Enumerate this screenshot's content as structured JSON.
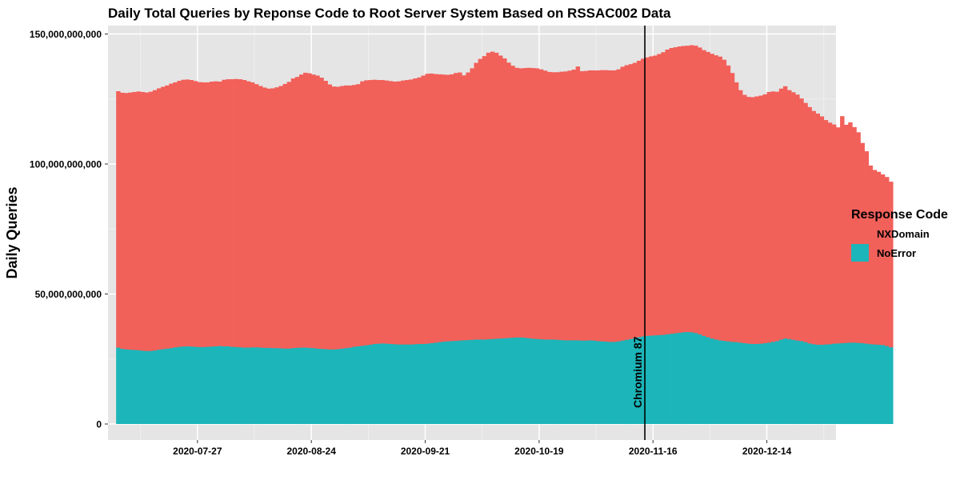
{
  "chart_data": {
    "type": "bar",
    "stacked": true,
    "title": "Daily Total Queries by Reponse Code to Root Server System Based on RSSAC002 Data",
    "xlabel": "",
    "ylabel": "Daily Queries",
    "ylim": [
      0,
      152000000000
    ],
    "yticks": [
      0,
      50000000000,
      100000000000,
      150000000000
    ],
    "ytick_labels": [
      "0",
      "50,000,000,000",
      "100,000,000,000",
      "150,000,000,000"
    ],
    "xtick_labels": [
      "2020-07-27",
      "2020-08-24",
      "2020-09-21",
      "2020-10-19",
      "2020-11-16",
      "2020-12-14"
    ],
    "xtick_dates": [
      "2020-07-27",
      "2020-08-24",
      "2020-09-21",
      "2020-10-19",
      "2020-11-16",
      "2020-12-14"
    ],
    "xlim": [
      "2020-07-05",
      "2020-12-31"
    ],
    "grid": true,
    "legend": {
      "title": "Response Code",
      "position": "right",
      "entries": [
        {
          "name": "NXDomain",
          "color": "#F2605A"
        },
        {
          "name": "NoError",
          "color": "#1CB5B9"
        }
      ]
    },
    "annotation": {
      "label": "Chromium 87",
      "date": "2020-11-17"
    },
    "series_layout": {
      "start_date": "2020-07-07",
      "end_date": "2020-12-31"
    },
    "series": [
      {
        "name": "NoError",
        "color": "#1CB5B9",
        "values": [
          29.5,
          29.0,
          28.8,
          28.7,
          28.6,
          28.5,
          28.3,
          28.2,
          28.2,
          28.4,
          28.7,
          28.9,
          29.1,
          29.3,
          29.6,
          29.8,
          29.9,
          30.0,
          29.9,
          29.8,
          29.7,
          29.7,
          29.8,
          29.9,
          30.0,
          30.1,
          30.0,
          30.0,
          29.8,
          29.7,
          29.6,
          29.5,
          29.5,
          29.6,
          29.6,
          29.5,
          29.4,
          29.4,
          29.3,
          29.3,
          29.2,
          29.1,
          29.1,
          29.3,
          29.4,
          29.5,
          29.5,
          29.4,
          29.3,
          29.1,
          29.0,
          28.9,
          28.8,
          28.8,
          28.9,
          29.1,
          29.3,
          29.5,
          29.8,
          30.0,
          30.2,
          30.4,
          30.6,
          30.9,
          31.0,
          31.1,
          31.0,
          30.9,
          30.8,
          30.7,
          30.7,
          30.7,
          30.7,
          30.8,
          30.9,
          30.9,
          31.0,
          31.2,
          31.4,
          31.6,
          31.8,
          31.9,
          32.0,
          32.1,
          32.2,
          32.3,
          32.4,
          32.5,
          32.6,
          32.6,
          32.6,
          32.7,
          32.8,
          32.9,
          33.0,
          33.1,
          33.2,
          33.3,
          33.4,
          33.4,
          33.3,
          33.1,
          32.9,
          32.8,
          32.7,
          32.6,
          32.6,
          32.6,
          32.5,
          32.4,
          32.3,
          32.3,
          32.3,
          32.3,
          32.2,
          32.2,
          32.3,
          32.2,
          32.0,
          31.9,
          31.8,
          31.7,
          31.7,
          31.9,
          32.2,
          32.5,
          32.8,
          33.2,
          33.5,
          33.8,
          34.0,
          34.1,
          34.2,
          34.3,
          34.4,
          34.6,
          34.8,
          35.0,
          35.2,
          35.4,
          35.5,
          35.4,
          35.1,
          34.6,
          34.0,
          33.5,
          33.0,
          32.6,
          32.3,
          32.1,
          31.9,
          31.7,
          31.6,
          31.4,
          31.2,
          31.0,
          30.9,
          30.9,
          31.0,
          31.2,
          31.4,
          31.7,
          32.0,
          32.6,
          33.0,
          32.8,
          32.5,
          32.2,
          32.0,
          31.6,
          31.1,
          30.8,
          30.6,
          30.6,
          30.7,
          30.8,
          31.0,
          31.1,
          31.2,
          31.3,
          31.4,
          31.4,
          31.3,
          31.2,
          31.0,
          30.8,
          30.7,
          30.6,
          30.5,
          30.1,
          29.6
        ]
      },
      {
        "name": "NXDomain",
        "color": "#F2605A",
        "values": [
          98.5,
          98.4,
          98.5,
          98.8,
          99.1,
          99.4,
          99.4,
          99.3,
          99.6,
          100.0,
          100.4,
          100.8,
          101.1,
          101.6,
          101.8,
          102.2,
          102.5,
          102.5,
          102.4,
          102.1,
          101.8,
          101.7,
          101.6,
          101.8,
          101.8,
          101.6,
          102.4,
          102.6,
          102.8,
          103.0,
          103.0,
          102.8,
          102.3,
          101.8,
          101.1,
          100.5,
          100.0,
          99.6,
          99.8,
          100.2,
          100.8,
          101.7,
          102.5,
          103.6,
          104.1,
          104.9,
          105.6,
          105.5,
          105.1,
          104.9,
          104.2,
          103.1,
          101.8,
          101.0,
          100.8,
          100.9,
          100.9,
          100.7,
          100.6,
          100.7,
          101.6,
          101.8,
          101.7,
          101.5,
          101.3,
          101.2,
          101.1,
          101.0,
          100.9,
          101.1,
          101.4,
          101.6,
          101.8,
          102.1,
          102.4,
          103.1,
          103.7,
          103.6,
          103.2,
          102.9,
          102.6,
          102.4,
          102.5,
          102.9,
          103.0,
          101.8,
          102.8,
          104.3,
          106.3,
          107.8,
          108.9,
          110.1,
          110.4,
          109.9,
          108.7,
          107.5,
          105.8,
          104.5,
          103.6,
          103.4,
          103.6,
          103.9,
          104.0,
          104.0,
          103.7,
          103.3,
          102.8,
          102.7,
          102.8,
          103.1,
          103.3,
          103.6,
          104.0,
          105.2,
          103.5,
          103.6,
          103.7,
          103.8,
          104.0,
          104.2,
          104.3,
          104.3,
          104.3,
          104.5,
          105.2,
          105.5,
          105.6,
          105.7,
          106.2,
          106.7,
          107.0,
          107.3,
          107.5,
          108.0,
          108.6,
          109.4,
          109.8,
          109.9,
          110.0,
          110.0,
          110.0,
          110.3,
          110.4,
          110.2,
          109.8,
          109.6,
          109.4,
          109.2,
          109.0,
          108.0,
          106.0,
          103.3,
          99.8,
          97.0,
          95.4,
          94.8,
          94.8,
          95.1,
          95.3,
          95.6,
          96.3,
          96.2,
          95.8,
          96.4,
          96.9,
          95.6,
          95.1,
          94.5,
          93.2,
          91.9,
          90.8,
          89.6,
          88.8,
          87.7,
          86.2,
          85.1,
          84.2,
          83.0,
          87.2,
          83.8,
          84.6,
          82.8,
          80.9,
          76.9,
          73.9,
          68.6,
          67.0,
          66.4,
          65.5,
          64.9,
          63.6,
          61.0
        ]
      }
    ]
  }
}
